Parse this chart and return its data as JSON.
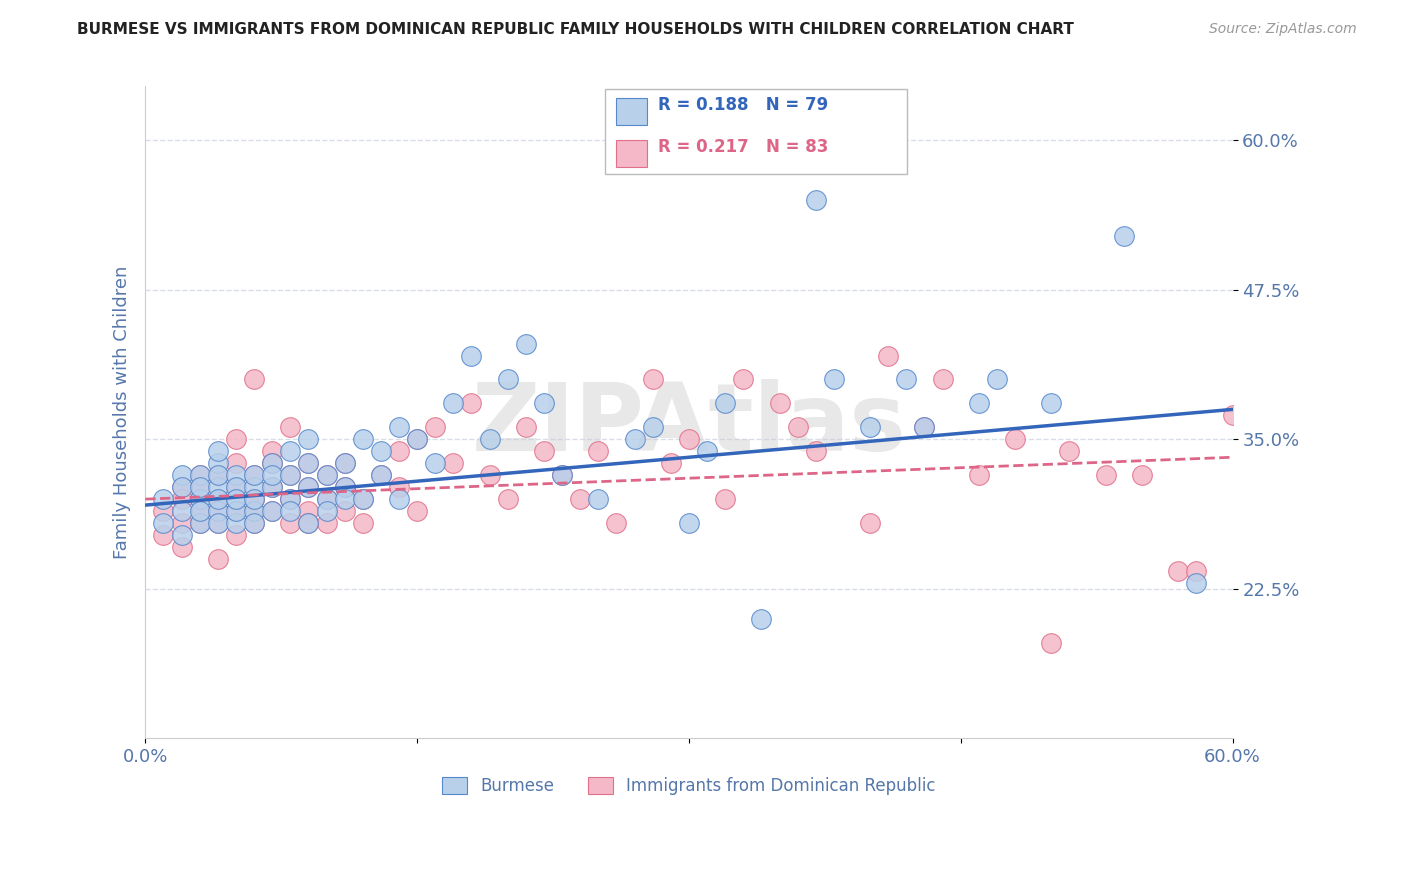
{
  "title": "BURMESE VS IMMIGRANTS FROM DOMINICAN REPUBLIC FAMILY HOUSEHOLDS WITH CHILDREN CORRELATION CHART",
  "source": "Source: ZipAtlas.com",
  "ylabel": "Family Households with Children",
  "x_min": 0.0,
  "x_max": 0.6,
  "y_min": 0.1,
  "y_max": 0.645,
  "y_ticks": [
    0.225,
    0.35,
    0.475,
    0.6
  ],
  "y_tick_labels": [
    "22.5%",
    "35.0%",
    "47.5%",
    "60.0%"
  ],
  "x_ticks": [
    0.0,
    0.15,
    0.3,
    0.45,
    0.6
  ],
  "x_tick_labels": [
    "0.0%",
    "",
    "",
    "",
    "60.0%"
  ],
  "legend_blue_r": "R = 0.188",
  "legend_blue_n": "N = 79",
  "legend_pink_r": "R = 0.217",
  "legend_pink_n": "N = 83",
  "blue_color": "#b8d0ea",
  "blue_edge_color": "#5588cc",
  "pink_color": "#f4b8c8",
  "pink_edge_color": "#e0708a",
  "blue_line_color": "#3366bb",
  "pink_line_color": "#dd6688",
  "watermark": "ZIPAtlas",
  "blue_scatter_x": [
    0.01,
    0.01,
    0.02,
    0.02,
    0.02,
    0.02,
    0.03,
    0.03,
    0.03,
    0.03,
    0.03,
    0.04,
    0.04,
    0.04,
    0.04,
    0.04,
    0.04,
    0.04,
    0.05,
    0.05,
    0.05,
    0.05,
    0.05,
    0.05,
    0.06,
    0.06,
    0.06,
    0.06,
    0.06,
    0.07,
    0.07,
    0.07,
    0.07,
    0.08,
    0.08,
    0.08,
    0.08,
    0.09,
    0.09,
    0.09,
    0.09,
    0.1,
    0.1,
    0.1,
    0.11,
    0.11,
    0.11,
    0.12,
    0.12,
    0.13,
    0.13,
    0.14,
    0.14,
    0.15,
    0.16,
    0.17,
    0.18,
    0.19,
    0.2,
    0.21,
    0.22,
    0.23,
    0.25,
    0.27,
    0.28,
    0.3,
    0.31,
    0.32,
    0.34,
    0.37,
    0.38,
    0.4,
    0.42,
    0.43,
    0.46,
    0.47,
    0.5,
    0.54,
    0.58
  ],
  "blue_scatter_y": [
    0.3,
    0.28,
    0.32,
    0.29,
    0.31,
    0.27,
    0.3,
    0.32,
    0.28,
    0.31,
    0.29,
    0.33,
    0.29,
    0.31,
    0.3,
    0.32,
    0.28,
    0.34,
    0.3,
    0.32,
    0.28,
    0.29,
    0.31,
    0.3,
    0.29,
    0.31,
    0.3,
    0.32,
    0.28,
    0.33,
    0.31,
    0.29,
    0.32,
    0.32,
    0.3,
    0.34,
    0.29,
    0.33,
    0.31,
    0.28,
    0.35,
    0.32,
    0.3,
    0.29,
    0.33,
    0.31,
    0.3,
    0.35,
    0.3,
    0.34,
    0.32,
    0.36,
    0.3,
    0.35,
    0.33,
    0.38,
    0.42,
    0.35,
    0.4,
    0.43,
    0.38,
    0.32,
    0.3,
    0.35,
    0.36,
    0.28,
    0.34,
    0.38,
    0.2,
    0.55,
    0.4,
    0.36,
    0.4,
    0.36,
    0.38,
    0.4,
    0.38,
    0.52,
    0.23
  ],
  "pink_scatter_x": [
    0.01,
    0.01,
    0.02,
    0.02,
    0.02,
    0.02,
    0.03,
    0.03,
    0.03,
    0.03,
    0.03,
    0.04,
    0.04,
    0.04,
    0.04,
    0.04,
    0.05,
    0.05,
    0.05,
    0.05,
    0.05,
    0.06,
    0.06,
    0.06,
    0.06,
    0.06,
    0.07,
    0.07,
    0.07,
    0.07,
    0.08,
    0.08,
    0.08,
    0.08,
    0.09,
    0.09,
    0.09,
    0.09,
    0.1,
    0.1,
    0.1,
    0.11,
    0.11,
    0.11,
    0.12,
    0.12,
    0.13,
    0.14,
    0.14,
    0.15,
    0.15,
    0.16,
    0.17,
    0.18,
    0.19,
    0.2,
    0.21,
    0.22,
    0.23,
    0.24,
    0.25,
    0.26,
    0.28,
    0.29,
    0.3,
    0.32,
    0.33,
    0.35,
    0.36,
    0.37,
    0.4,
    0.41,
    0.43,
    0.44,
    0.46,
    0.48,
    0.5,
    0.51,
    0.53,
    0.55,
    0.57,
    0.58,
    0.6
  ],
  "pink_scatter_y": [
    0.29,
    0.27,
    0.31,
    0.28,
    0.3,
    0.26,
    0.3,
    0.28,
    0.32,
    0.29,
    0.31,
    0.3,
    0.28,
    0.32,
    0.29,
    0.25,
    0.33,
    0.29,
    0.31,
    0.35,
    0.27,
    0.3,
    0.28,
    0.32,
    0.4,
    0.29,
    0.31,
    0.29,
    0.34,
    0.33,
    0.3,
    0.28,
    0.32,
    0.36,
    0.31,
    0.29,
    0.33,
    0.28,
    0.3,
    0.28,
    0.32,
    0.31,
    0.29,
    0.33,
    0.28,
    0.3,
    0.32,
    0.34,
    0.31,
    0.35,
    0.29,
    0.36,
    0.33,
    0.38,
    0.32,
    0.3,
    0.36,
    0.34,
    0.32,
    0.3,
    0.34,
    0.28,
    0.4,
    0.33,
    0.35,
    0.3,
    0.4,
    0.38,
    0.36,
    0.34,
    0.28,
    0.42,
    0.36,
    0.4,
    0.32,
    0.35,
    0.18,
    0.34,
    0.32,
    0.32,
    0.24,
    0.24,
    0.37
  ],
  "blue_line_y_start": 0.295,
  "blue_line_y_end": 0.375,
  "pink_line_y_start": 0.3,
  "pink_line_y_end": 0.335,
  "grid_color": "#d8dde8",
  "background_color": "#ffffff",
  "axis_label_color": "#5577aa",
  "title_color": "#222222",
  "source_color": "#999999"
}
